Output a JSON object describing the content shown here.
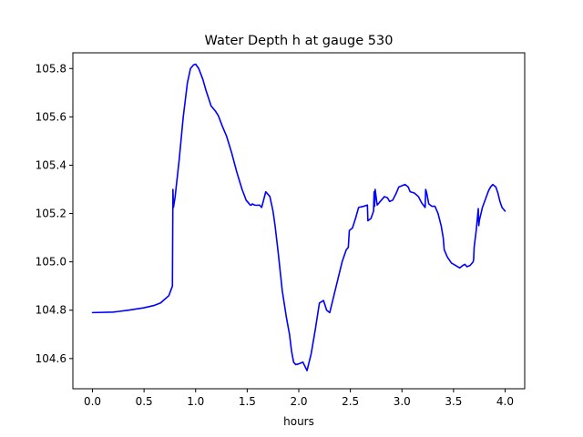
{
  "chart_data": {
    "type": "line",
    "title": "Water Depth h at gauge 530",
    "xlabel": "hours",
    "ylabel": "",
    "xlim": [
      -0.19,
      4.19
    ],
    "ylim": [
      104.475,
      105.865
    ],
    "xticks": [
      0.0,
      0.5,
      1.0,
      1.5,
      2.0,
      2.5,
      3.0,
      3.5,
      4.0
    ],
    "xtick_labels": [
      "0.0",
      "0.5",
      "1.0",
      "1.5",
      "2.0",
      "2.5",
      "3.0",
      "3.5",
      "4.0"
    ],
    "yticks": [
      104.6,
      104.8,
      105.0,
      105.2,
      105.4,
      105.6,
      105.8
    ],
    "ytick_labels": [
      "104.6",
      "104.8",
      "105.0",
      "105.2",
      "105.4",
      "105.6",
      "105.8"
    ],
    "grid": false,
    "series": [
      {
        "color": "#0000ff",
        "x": [
          0.0,
          0.2,
          0.35,
          0.5,
          0.6,
          0.66,
          0.7,
          0.74,
          0.775,
          0.78,
          0.785,
          0.8,
          0.84,
          0.88,
          0.92,
          0.95,
          0.98,
          1.0,
          1.03,
          1.07,
          1.1,
          1.15,
          1.19,
          1.22,
          1.26,
          1.3,
          1.35,
          1.4,
          1.45,
          1.49,
          1.52,
          1.53,
          1.54,
          1.55,
          1.57,
          1.59,
          1.62,
          1.64,
          1.68,
          1.72,
          1.75,
          1.77,
          1.8,
          1.84,
          1.88,
          1.91,
          1.93,
          1.95,
          1.97,
          2.0,
          2.04,
          2.08,
          2.12,
          2.16,
          2.18,
          2.2,
          2.24,
          2.27,
          2.3,
          2.34,
          2.38,
          2.42,
          2.46,
          2.48,
          2.49,
          2.52,
          2.55,
          2.58,
          2.63,
          2.665,
          2.67,
          2.7,
          2.725,
          2.73,
          2.735,
          2.74,
          2.76,
          2.8,
          2.83,
          2.86,
          2.88,
          2.91,
          2.94,
          2.97,
          3.0,
          3.03,
          3.06,
          3.08,
          3.12,
          3.16,
          3.19,
          3.225,
          3.23,
          3.24,
          3.26,
          3.29,
          3.32,
          3.35,
          3.38,
          3.4,
          3.41,
          3.44,
          3.48,
          3.52,
          3.56,
          3.59,
          3.61,
          3.63,
          3.66,
          3.69,
          3.695,
          3.7,
          3.72,
          3.74,
          3.745,
          3.75,
          3.78,
          3.81,
          3.84,
          3.86,
          3.88,
          3.91,
          3.93,
          3.95,
          3.97,
          4.0
        ],
        "y": [
          104.79,
          104.792,
          104.8,
          104.81,
          104.82,
          104.83,
          104.845,
          104.86,
          104.9,
          105.3,
          105.225,
          105.265,
          105.42,
          105.6,
          105.74,
          105.8,
          105.815,
          105.818,
          105.8,
          105.755,
          105.71,
          105.645,
          105.625,
          105.605,
          105.56,
          105.52,
          105.45,
          105.37,
          105.3,
          105.255,
          105.24,
          105.235,
          105.235,
          105.24,
          105.235,
          105.234,
          105.235,
          105.225,
          105.29,
          105.27,
          105.21,
          105.15,
          105.04,
          104.88,
          104.77,
          104.7,
          104.63,
          104.585,
          104.575,
          104.578,
          104.585,
          104.55,
          104.62,
          104.72,
          104.775,
          104.83,
          104.84,
          104.8,
          104.79,
          104.86,
          104.93,
          105.0,
          105.05,
          105.06,
          105.13,
          105.14,
          105.18,
          105.225,
          105.23,
          105.235,
          105.17,
          105.18,
          105.21,
          105.29,
          105.23,
          105.3,
          105.235,
          105.255,
          105.27,
          105.265,
          105.25,
          105.255,
          105.28,
          105.31,
          105.315,
          105.32,
          105.31,
          105.29,
          105.285,
          105.27,
          105.245,
          105.225,
          105.3,
          105.285,
          105.24,
          105.23,
          105.23,
          105.2,
          105.15,
          105.1,
          105.05,
          105.02,
          104.995,
          104.985,
          104.975,
          104.985,
          104.99,
          104.98,
          104.985,
          105.0,
          105.01,
          105.06,
          105.13,
          105.22,
          105.15,
          105.17,
          105.225,
          105.26,
          105.295,
          105.31,
          105.32,
          105.31,
          105.285,
          105.25,
          105.225,
          105.21
        ]
      }
    ]
  }
}
